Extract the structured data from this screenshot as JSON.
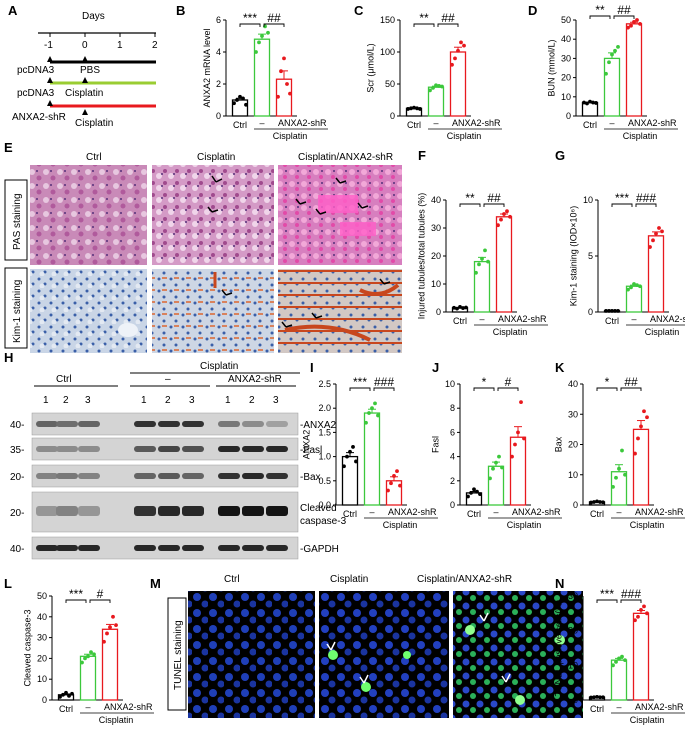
{
  "panels": {
    "A": "A",
    "B": "B",
    "C": "C",
    "D": "D",
    "E": "E",
    "F": "F",
    "G": "G",
    "H": "H",
    "I": "I",
    "J": "J",
    "K": "K",
    "L": "L",
    "M": "M",
    "N": "N"
  },
  "colors": {
    "ctrl": "#000000",
    "cisplatin": "#3cc83c",
    "shr": "#e8191e",
    "timeline_black": "#000000",
    "timeline_green": "#9acd32",
    "timeline_red": "#e8191e"
  },
  "timeline": {
    "days_label": "Days",
    "ticks": [
      "-1",
      "0",
      "1",
      "2"
    ],
    "rows": [
      {
        "label": "pcDNA3",
        "treat": "PBS"
      },
      {
        "label": "pcDNA3",
        "treat": "Cisplatin"
      },
      {
        "label": "ANXA2-shR",
        "treat": "Cisplatin"
      }
    ]
  },
  "microscopy": {
    "E": {
      "columns": [
        "Ctrl",
        "Cisplatin",
        "Cisplatin/ANXA2-shR"
      ],
      "rows": [
        "PAS staining",
        "Kim-1 staining"
      ]
    },
    "M": {
      "columns": [
        "Ctrl",
        "Cisplatin",
        "Cisplatin/ANXA2-shR"
      ],
      "rows": [
        "TUNEL staining"
      ]
    }
  },
  "western": {
    "group_top": "Cisplatin",
    "groups": [
      "Ctrl",
      "–",
      "ANXA2-shR"
    ],
    "lanes": [
      "1",
      "2",
      "3",
      "1",
      "2",
      "3",
      "1",
      "2",
      "3"
    ],
    "bands": [
      {
        "mw": "40-",
        "name": "-ANXA2"
      },
      {
        "mw": "35-",
        "name": "-Fasl"
      },
      {
        "mw": "20-",
        "name": "-Bax"
      },
      {
        "mw": "20-",
        "name": "Cleaved",
        "name2": "caspase-3"
      },
      {
        "mw": "40-",
        "name": "-GAPDH"
      }
    ]
  },
  "common": {
    "ctrl": "Ctrl",
    "dash": "–",
    "shr": "ANXA2-shR",
    "cisplatin": "Cisplatin"
  },
  "chart_data": [
    {
      "panel": "B",
      "type": "bar",
      "ylabel": "ANXA2  mRNA level",
      "ylim": [
        0,
        6
      ],
      "yticks": [
        "0",
        "2",
        "4",
        "6"
      ],
      "categories": [
        "Ctrl",
        "–",
        "ANXA2-shR"
      ],
      "group_label": "Cisplatin",
      "values": [
        1.0,
        4.8,
        2.3
      ],
      "sig": [
        "***",
        "##"
      ],
      "points": [
        [
          0.8,
          1.0,
          1.2,
          1.1,
          0.7
        ],
        [
          4.0,
          4.6,
          5.0,
          5.6,
          5.2
        ],
        [
          1.2,
          2.8,
          3.6,
          2.0,
          1.4
        ]
      ]
    },
    {
      "panel": "C",
      "type": "bar",
      "ylabel": "Scr (μmol/L)",
      "ylim": [
        0,
        150
      ],
      "yticks": [
        "0",
        "50",
        "100",
        "150"
      ],
      "categories": [
        "Ctrl",
        "–",
        "ANXA2-shR"
      ],
      "group_label": "Cisplatin",
      "values": [
        12,
        45,
        100
      ],
      "sig": [
        "**",
        "##"
      ],
      "points": [
        [
          11,
          12,
          13,
          12,
          11
        ],
        [
          40,
          44,
          48,
          47,
          46
        ],
        [
          80,
          90,
          102,
          115,
          110
        ]
      ]
    },
    {
      "panel": "D",
      "type": "bar",
      "ylabel": "BUN (mmol/L)",
      "ylim": [
        0,
        50
      ],
      "yticks": [
        "0",
        "10",
        "20",
        "30",
        "40",
        "50"
      ],
      "categories": [
        "Ctrl",
        "–",
        "ANXA2-shR"
      ],
      "group_label": "Cisplatin",
      "values": [
        7,
        30,
        48
      ],
      "sig": [
        "**",
        "##"
      ],
      "points": [
        [
          7,
          6.5,
          7.5,
          7,
          6.8
        ],
        [
          22,
          28,
          32,
          34,
          36
        ],
        [
          46,
          47,
          49,
          50,
          48
        ]
      ]
    },
    {
      "panel": "F",
      "type": "bar",
      "ylabel": "Injured tubules/total tubules (%)",
      "ylim": [
        0,
        40
      ],
      "yticks": [
        "0",
        "10",
        "20",
        "30",
        "40"
      ],
      "categories": [
        "Ctrl",
        "–",
        "ANXA2-shR"
      ],
      "group_label": "Cisplatin",
      "values": [
        1.5,
        18,
        34
      ],
      "sig": [
        "**",
        "##"
      ],
      "points": [
        [
          1.5,
          1.2,
          1.8,
          1.4,
          1.6
        ],
        [
          14,
          17,
          19,
          22,
          18
        ],
        [
          31,
          33,
          35,
          36,
          34
        ]
      ]
    },
    {
      "panel": "G",
      "type": "bar",
      "ylabel": "Kim-1 staining (IOD×10⁶)",
      "ylim": [
        0,
        10
      ],
      "yticks": [
        "0",
        "5",
        "10"
      ],
      "categories": [
        "Ctrl",
        "–",
        "ANXA2-shR"
      ],
      "group_label": "Cisplatin",
      "values": [
        0.1,
        2.3,
        6.8
      ],
      "sig": [
        "***",
        "###"
      ],
      "points": [
        [
          0.1,
          0.1,
          0.1,
          0.1,
          0.1
        ],
        [
          2.0,
          2.2,
          2.5,
          2.4,
          2.3
        ],
        [
          5.8,
          6.4,
          7.0,
          7.5,
          7.2
        ]
      ]
    },
    {
      "panel": "I",
      "type": "bar",
      "ylabel": "ANXA2",
      "ylim": [
        0,
        2.5
      ],
      "yticks": [
        "0.0",
        "0.5",
        "1.0",
        "1.5",
        "2.0",
        "2.5"
      ],
      "categories": [
        "Ctrl",
        "–",
        "ANXA2-shR"
      ],
      "group_label": "Cisplatin",
      "values": [
        1.0,
        1.9,
        0.5
      ],
      "sig": [
        "***",
        "###"
      ],
      "points": [
        [
          0.8,
          1.0,
          1.1,
          1.2,
          0.9
        ],
        [
          1.7,
          1.9,
          2.0,
          2.1,
          1.85
        ],
        [
          0.3,
          0.45,
          0.6,
          0.7,
          0.4
        ]
      ]
    },
    {
      "panel": "J",
      "type": "bar",
      "ylabel": "Fasl",
      "ylim": [
        0,
        10
      ],
      "yticks": [
        "0",
        "2",
        "4",
        "6",
        "8",
        "10"
      ],
      "categories": [
        "Ctrl",
        "–",
        "ANXA2-shR"
      ],
      "group_label": "Cisplatin",
      "values": [
        1.0,
        3.2,
        5.6
      ],
      "sig": [
        "*",
        "#"
      ],
      "points": [
        [
          0.7,
          1.0,
          1.3,
          1.1,
          0.9
        ],
        [
          2.2,
          3.0,
          3.5,
          4.0,
          3.1
        ],
        [
          4.0,
          5.0,
          6.0,
          8.5,
          5.5
        ]
      ]
    },
    {
      "panel": "K",
      "type": "bar",
      "ylabel": "Bax",
      "ylim": [
        0,
        40
      ],
      "yticks": [
        "0",
        "10",
        "20",
        "30",
        "40"
      ],
      "categories": [
        "Ctrl",
        "–",
        "ANXA2-shR"
      ],
      "group_label": "Cisplatin",
      "values": [
        1.0,
        11,
        25
      ],
      "sig": [
        "*",
        "##"
      ],
      "points": [
        [
          0.8,
          1.0,
          1.2,
          1.0,
          0.9
        ],
        [
          6,
          9,
          12,
          18,
          10
        ],
        [
          17,
          22,
          26,
          31,
          29
        ]
      ]
    },
    {
      "panel": "L",
      "type": "bar",
      "ylabel": "Cleaved caspase-3",
      "ylim": [
        0,
        50
      ],
      "yticks": [
        "0",
        "10",
        "20",
        "30",
        "40",
        "50"
      ],
      "categories": [
        "Ctrl",
        "–",
        "ANXA2-shR"
      ],
      "group_label": "Cisplatin",
      "values": [
        2.5,
        21,
        34
      ],
      "sig": [
        "***",
        "#"
      ],
      "points": [
        [
          1.5,
          2.5,
          3.5,
          2.0,
          3.0
        ],
        [
          18,
          20,
          21,
          23,
          22
        ],
        [
          28,
          32,
          35,
          40,
          36
        ]
      ]
    },
    {
      "panel": "N",
      "type": "bar",
      "ylabel": "TUNEL positive cells(%)",
      "ylim": [
        0,
        30
      ],
      "yticks": [
        "0",
        "10",
        "20",
        "30"
      ],
      "categories": [
        "Ctrl",
        "–",
        "ANXA2-shR"
      ],
      "group_label": "Cisplatin",
      "values": [
        0.8,
        11.5,
        25
      ],
      "sig": [
        "***",
        "###"
      ],
      "points": [
        [
          0.7,
          0.8,
          0.9,
          0.8,
          0.8
        ],
        [
          10,
          11,
          12,
          12.5,
          11.5
        ],
        [
          23,
          24,
          26,
          27,
          25
        ]
      ]
    }
  ]
}
